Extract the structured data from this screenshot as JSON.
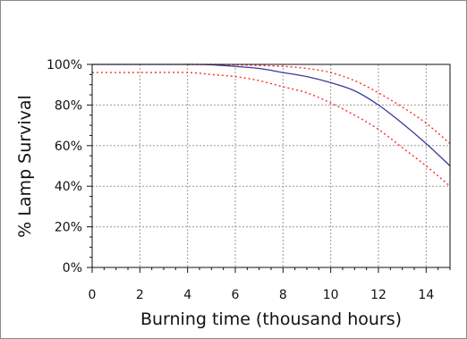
{
  "chart_data": {
    "type": "line",
    "title": "",
    "xlabel": "Burning time (thousand hours)",
    "ylabel": "% Lamp Survival",
    "xlim": [
      0,
      15
    ],
    "ylim": [
      0,
      100
    ],
    "x_ticks": [
      0,
      2,
      4,
      6,
      8,
      10,
      12,
      14
    ],
    "x_tick_labels": [
      "0",
      "2",
      "4",
      "6",
      "8",
      "10",
      "12",
      "14"
    ],
    "y_ticks": [
      0,
      20,
      40,
      60,
      80,
      100
    ],
    "y_tick_labels": [
      "0%",
      "20%",
      "40%",
      "60%",
      "80%",
      "100%"
    ],
    "grid": true,
    "legend": "none",
    "series": [
      {
        "color": "#3a3a9a",
        "style": "solid",
        "x": [
          0,
          2,
          4,
          5,
          6,
          7,
          8,
          9,
          10,
          11,
          12,
          13,
          14,
          15
        ],
        "y": [
          100,
          100,
          100,
          99.8,
          99,
          98,
          96,
          94,
          91,
          87,
          80,
          71,
          61,
          50
        ]
      },
      {
        "color": "#ff2a2a",
        "style": "dotted",
        "x": [
          4,
          5,
          6,
          7,
          8,
          9,
          10,
          11,
          12,
          13,
          14,
          15
        ],
        "y": [
          100,
          100,
          99.8,
          99.5,
          99,
          98,
          96,
          92,
          86,
          79,
          71,
          61
        ]
      },
      {
        "color": "#ff2a2a",
        "style": "dotted",
        "x": [
          0,
          2,
          4,
          5,
          6,
          7,
          8,
          9,
          10,
          11,
          12,
          13,
          14,
          15
        ],
        "y": [
          96,
          96,
          96,
          95,
          94,
          92,
          89,
          86,
          81,
          75,
          68,
          59,
          50,
          40
        ]
      }
    ]
  }
}
